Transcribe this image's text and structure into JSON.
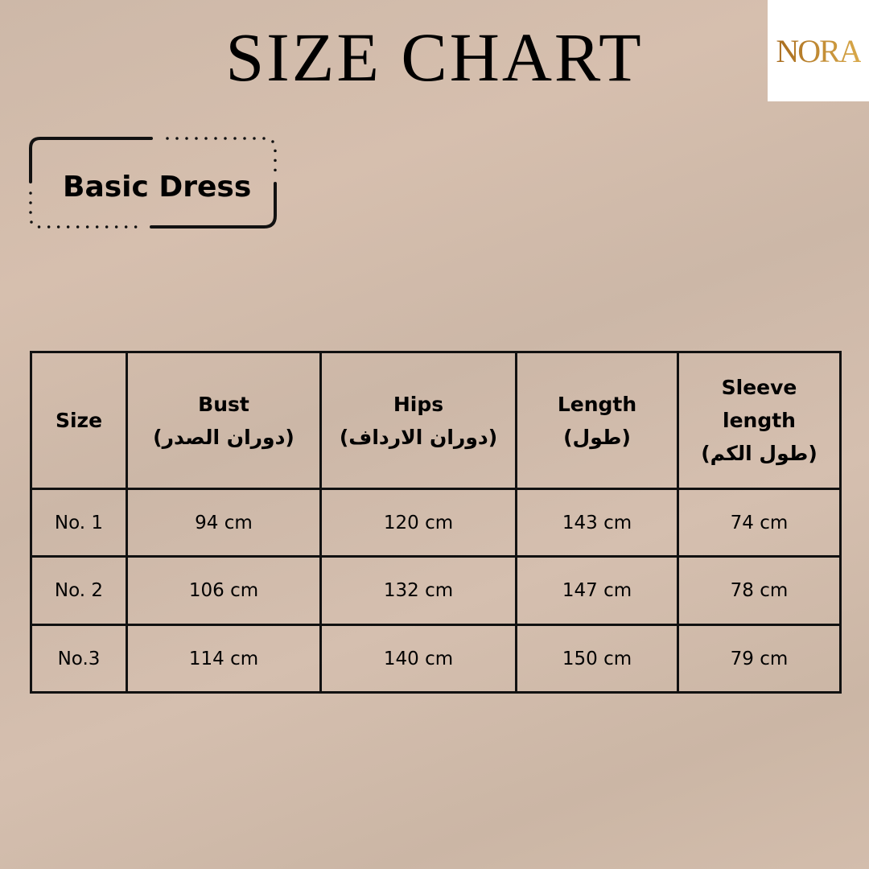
{
  "title": "SIZE CHART",
  "logo": "NORA",
  "product": "Basic Dress",
  "colors": {
    "background": "#d2bcab",
    "logo_gold": "#b98232"
  },
  "table": {
    "headers": [
      {
        "en": "Size",
        "ar": ""
      },
      {
        "en": "Bust",
        "ar": "(دوران الصدر)"
      },
      {
        "en": "Hips",
        "ar": "(دوران الارداف)"
      },
      {
        "en": "Length",
        "ar": "(طول)"
      },
      {
        "en": "Sleeve length",
        "ar": "(طول الكم)"
      }
    ],
    "rows": [
      [
        "No. 1",
        "94 cm",
        "120 cm",
        "143 cm",
        "74 cm"
      ],
      [
        "No. 2",
        "106 cm",
        "132 cm",
        "147 cm",
        "78 cm"
      ],
      [
        "No.3",
        "114 cm",
        "140 cm",
        "150 cm",
        "79 cm"
      ]
    ]
  }
}
